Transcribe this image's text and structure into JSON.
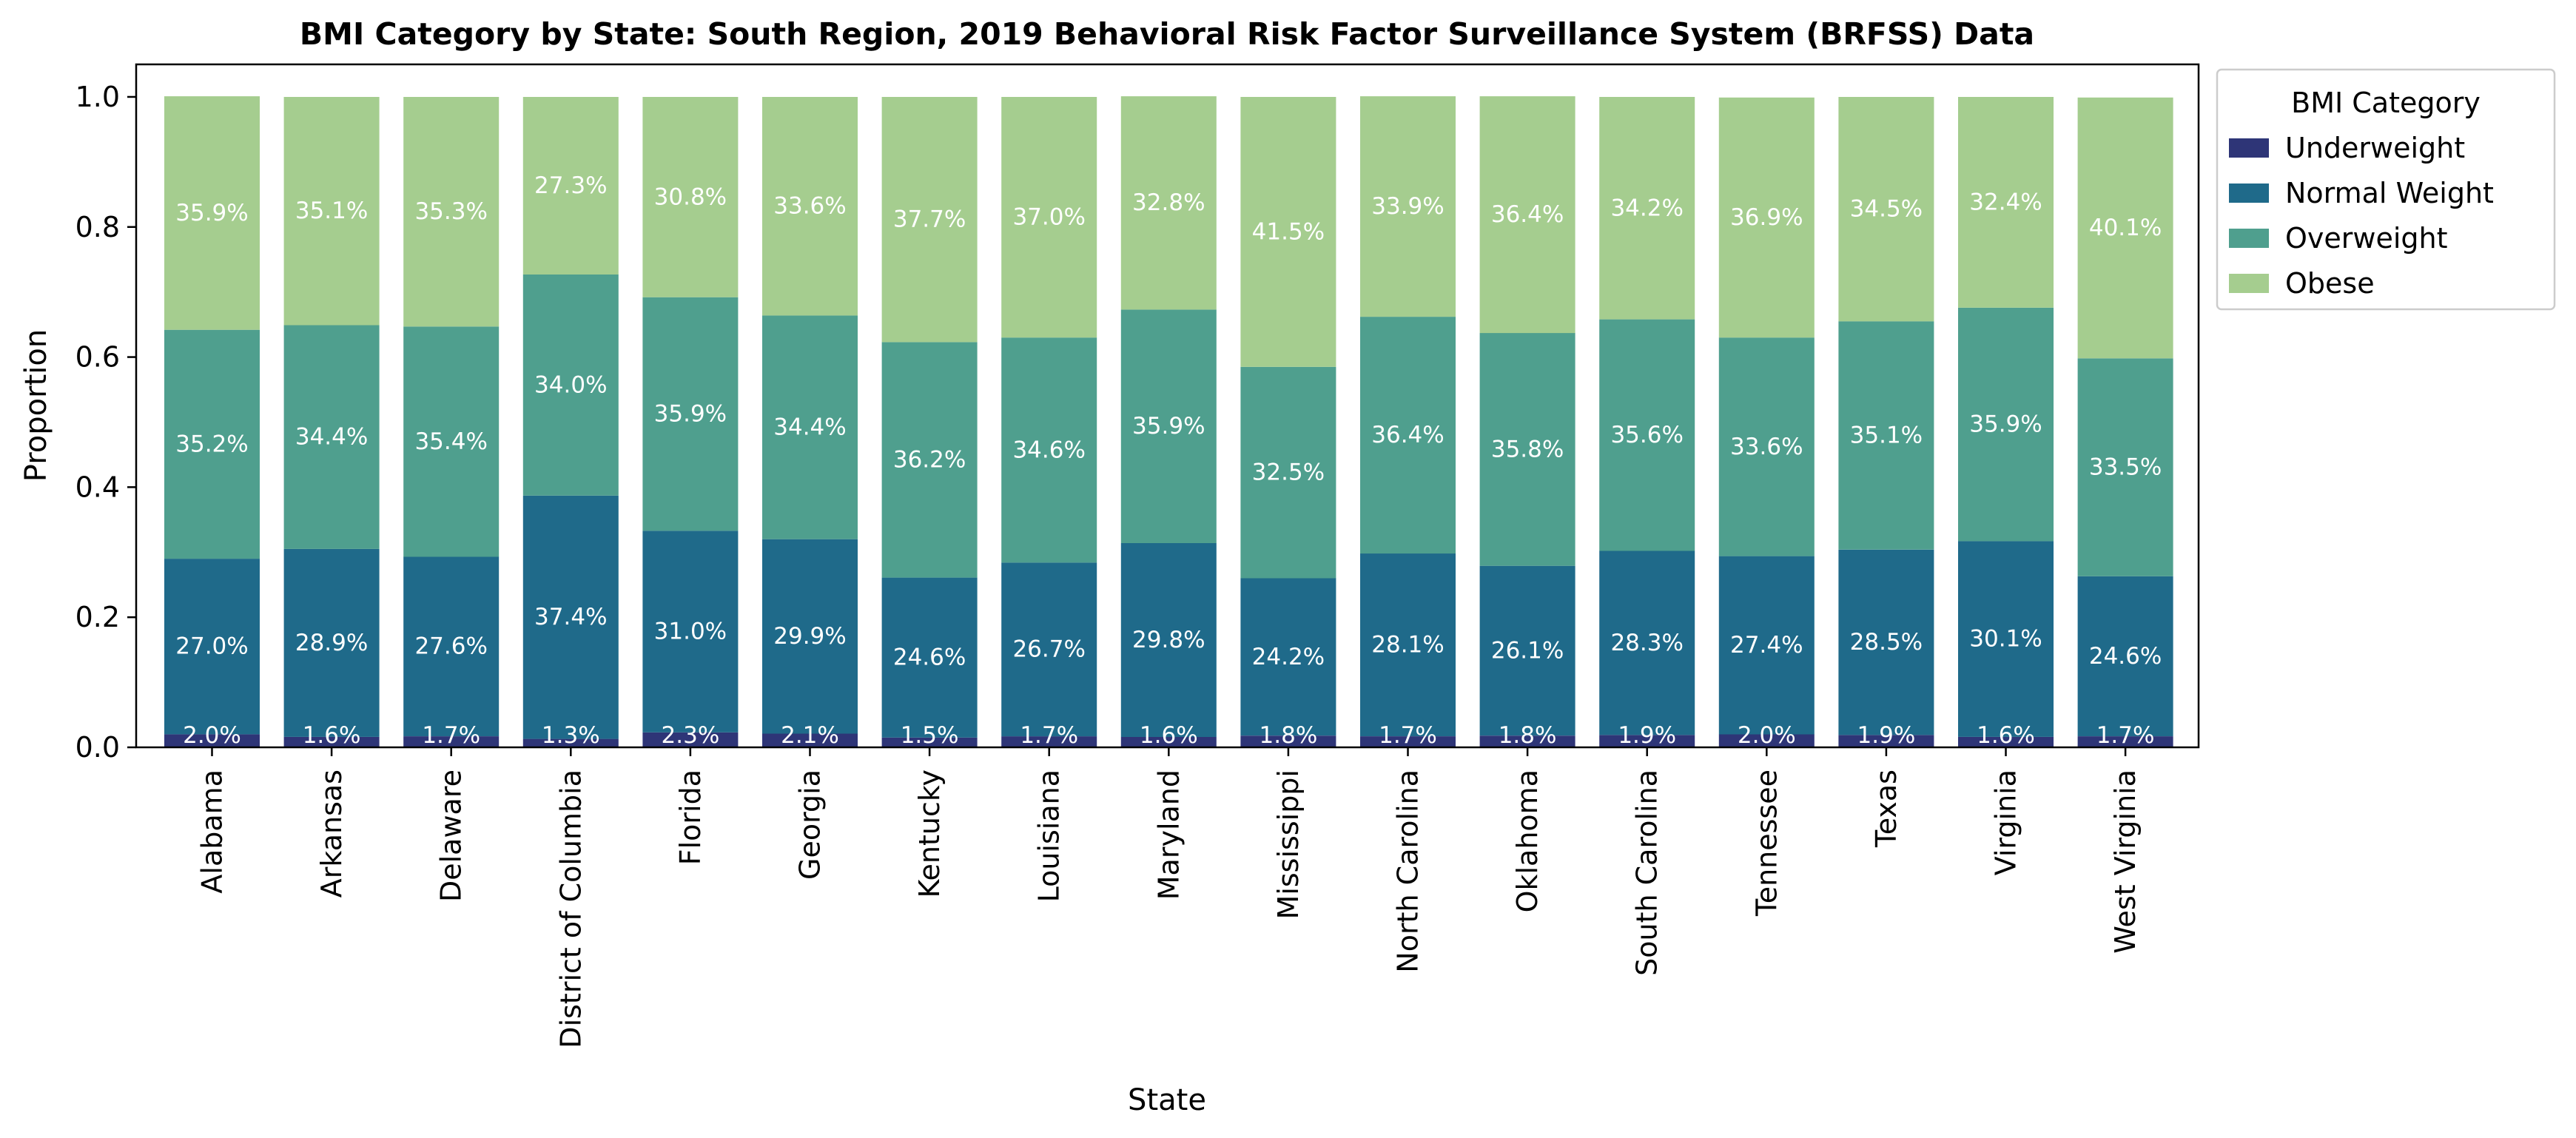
{
  "chart_data": {
    "type": "bar",
    "stacked": true,
    "title": "BMI Category by State: South Region, 2019 Behavioral Risk Factor Surveillance System (BRFSS) Data",
    "xlabel": "State",
    "ylabel": "Proportion",
    "ylim": [
      0,
      1.05
    ],
    "yticks": [
      "0.0",
      "0.2",
      "0.4",
      "0.6",
      "0.8",
      "1.0"
    ],
    "ytick_values": [
      0,
      0.2,
      0.4,
      0.6,
      0.8,
      1.0
    ],
    "grid": false,
    "legend": {
      "title": "BMI Category",
      "placement": "outside-top-right"
    },
    "categories": [
      "Alabama",
      "Arkansas",
      "Delaware",
      "District of Columbia",
      "Florida",
      "Georgia",
      "Kentucky",
      "Louisiana",
      "Maryland",
      "Mississippi",
      "North Carolina",
      "Oklahoma",
      "South Carolina",
      "Tennessee",
      "Texas",
      "Virginia",
      "West Virginia"
    ],
    "series": [
      {
        "name": "Underweight",
        "color": "#2e3577",
        "values": [
          0.02,
          0.016,
          0.017,
          0.013,
          0.023,
          0.021,
          0.015,
          0.017,
          0.016,
          0.018,
          0.017,
          0.018,
          0.019,
          0.02,
          0.019,
          0.016,
          0.017
        ],
        "labels": [
          "2.0%",
          "1.6%",
          "1.7%",
          "1.3%",
          "2.3%",
          "2.1%",
          "1.5%",
          "1.7%",
          "1.6%",
          "1.8%",
          "1.7%",
          "1.8%",
          "1.9%",
          "2.0%",
          "1.9%",
          "1.6%",
          "1.7%"
        ]
      },
      {
        "name": "Normal Weight",
        "color": "#1f6a8a",
        "values": [
          0.27,
          0.289,
          0.276,
          0.374,
          0.31,
          0.299,
          0.246,
          0.267,
          0.298,
          0.242,
          0.281,
          0.261,
          0.283,
          0.274,
          0.285,
          0.301,
          0.246
        ],
        "labels": [
          "27.0%",
          "28.9%",
          "27.6%",
          "37.4%",
          "31.0%",
          "29.9%",
          "24.6%",
          "26.7%",
          "29.8%",
          "24.2%",
          "28.1%",
          "26.1%",
          "28.3%",
          "27.4%",
          "28.5%",
          "30.1%",
          "24.6%"
        ]
      },
      {
        "name": "Overweight",
        "color": "#4f9f8e",
        "values": [
          0.352,
          0.344,
          0.354,
          0.34,
          0.359,
          0.344,
          0.362,
          0.346,
          0.359,
          0.325,
          0.364,
          0.358,
          0.356,
          0.336,
          0.351,
          0.359,
          0.335
        ],
        "labels": [
          "35.2%",
          "34.4%",
          "35.4%",
          "34.0%",
          "35.9%",
          "34.4%",
          "36.2%",
          "34.6%",
          "35.9%",
          "32.5%",
          "36.4%",
          "35.8%",
          "35.6%",
          "33.6%",
          "35.1%",
          "35.9%",
          "33.5%"
        ]
      },
      {
        "name": "Obese",
        "color": "#a5cd8f",
        "values": [
          0.359,
          0.351,
          0.353,
          0.273,
          0.308,
          0.336,
          0.377,
          0.37,
          0.328,
          0.415,
          0.339,
          0.364,
          0.342,
          0.369,
          0.345,
          0.324,
          0.401
        ],
        "labels": [
          "35.9%",
          "35.1%",
          "35.3%",
          "27.3%",
          "30.8%",
          "33.6%",
          "37.7%",
          "37.0%",
          "32.8%",
          "41.5%",
          "33.9%",
          "36.4%",
          "34.2%",
          "36.9%",
          "34.5%",
          "32.4%",
          "40.1%"
        ]
      }
    ]
  }
}
